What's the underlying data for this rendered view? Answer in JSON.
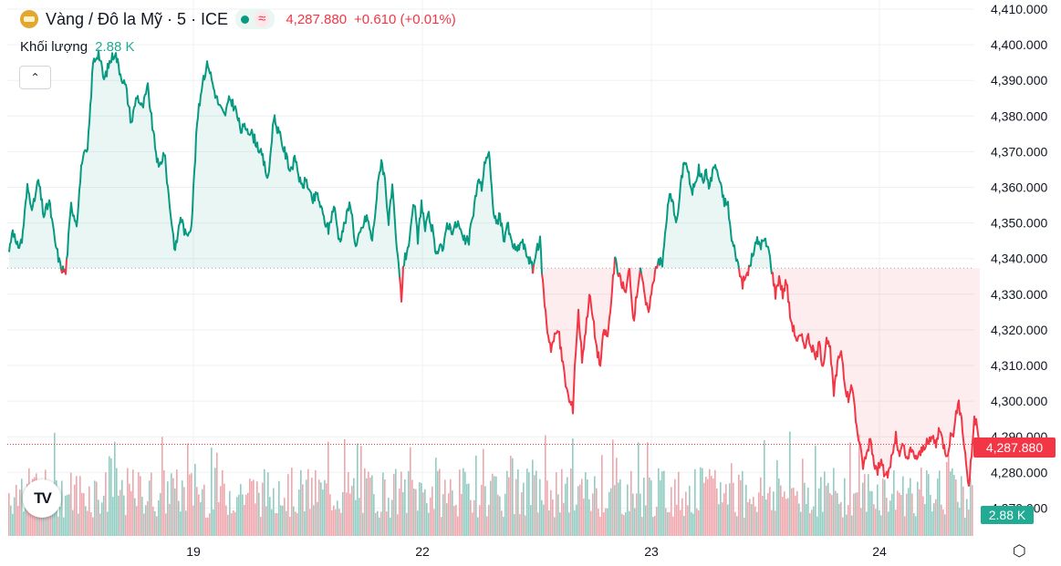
{
  "header": {
    "symbol_icon": "gold-coin-icon",
    "title": "Vàng / Đô la Mỹ · 5 · ICE",
    "status_icon": "market-open-dot-icon",
    "wave_icon": "≈",
    "price": "4,287.880",
    "change": "+0.610 (+0.01%)"
  },
  "volume": {
    "label": "Khối lượng",
    "value": "2.88 K"
  },
  "controls": {
    "collapse_icon": "chevron-up-icon",
    "settings_icon": "gear-icon",
    "logo_text": "TV"
  },
  "colors": {
    "up": "#089981",
    "down": "#f23645",
    "vol_up": "#8fcdc2",
    "vol_down": "#f1a5ac"
  },
  "chart_data": {
    "type": "area",
    "y_axis_ticks": [
      "4,410.000",
      "4,400.000",
      "4,390.000",
      "4,380.000",
      "4,370.000",
      "4,360.000",
      "4,350.000",
      "4,340.000",
      "4,330.000",
      "4,320.000",
      "4,310.000",
      "4,300.000",
      "4,290.000",
      "4,280.000",
      "4,270.000"
    ],
    "ylim": [
      4267,
      4413
    ],
    "x_ticks": [
      "19",
      "22",
      "23",
      "24"
    ],
    "baseline": 4337.3,
    "last_price_label": "4,287.880",
    "last_volume_label": "2.88 K",
    "legend": "none",
    "grid": true,
    "price_anchors": [
      [
        0,
        4342
      ],
      [
        4,
        4349
      ],
      [
        8,
        4343
      ],
      [
        14,
        4345
      ],
      [
        20,
        4360
      ],
      [
        26,
        4354
      ],
      [
        32,
        4362
      ],
      [
        38,
        4352
      ],
      [
        44,
        4356
      ],
      [
        50,
        4345
      ],
      [
        56,
        4338
      ],
      [
        62,
        4336
      ],
      [
        68,
        4355
      ],
      [
        74,
        4350
      ],
      [
        80,
        4368
      ],
      [
        86,
        4370
      ],
      [
        92,
        4395
      ],
      [
        98,
        4398
      ],
      [
        104,
        4390
      ],
      [
        110,
        4395
      ],
      [
        116,
        4398
      ],
      [
        122,
        4392
      ],
      [
        128,
        4388
      ],
      [
        134,
        4378
      ],
      [
        140,
        4386
      ],
      [
        146,
        4382
      ],
      [
        152,
        4388
      ],
      [
        158,
        4375
      ],
      [
        164,
        4365
      ],
      [
        170,
        4370
      ],
      [
        176,
        4355
      ],
      [
        182,
        4342
      ],
      [
        188,
        4352
      ],
      [
        194,
        4346
      ],
      [
        200,
        4350
      ],
      [
        206,
        4378
      ],
      [
        212,
        4390
      ],
      [
        218,
        4395
      ],
      [
        224,
        4388
      ],
      [
        230,
        4383
      ],
      [
        236,
        4380
      ],
      [
        242,
        4385
      ],
      [
        248,
        4382
      ],
      [
        254,
        4376
      ],
      [
        260,
        4377
      ],
      [
        266,
        4375
      ],
      [
        272,
        4372
      ],
      [
        278,
        4368
      ],
      [
        284,
        4362
      ],
      [
        290,
        4380
      ],
      [
        296,
        4375
      ],
      [
        302,
        4370
      ],
      [
        308,
        4365
      ],
      [
        314,
        4368
      ],
      [
        320,
        4360
      ],
      [
        326,
        4362
      ],
      [
        332,
        4356
      ],
      [
        338,
        4358
      ],
      [
        344,
        4352
      ],
      [
        350,
        4348
      ],
      [
        356,
        4355
      ],
      [
        362,
        4345
      ],
      [
        368,
        4350
      ],
      [
        374,
        4356
      ],
      [
        380,
        4343
      ],
      [
        386,
        4348
      ],
      [
        392,
        4352
      ],
      [
        398,
        4345
      ],
      [
        404,
        4360
      ],
      [
        408,
        4368
      ],
      [
        412,
        4362
      ],
      [
        416,
        4350
      ],
      [
        420,
        4360
      ],
      [
        424,
        4345
      ],
      [
        428,
        4335
      ],
      [
        430,
        4328
      ],
      [
        432,
        4338
      ],
      [
        436,
        4342
      ],
      [
        440,
        4347
      ],
      [
        444,
        4356
      ],
      [
        448,
        4345
      ],
      [
        452,
        4356
      ],
      [
        456,
        4348
      ],
      [
        460,
        4352
      ],
      [
        464,
        4348
      ],
      [
        468,
        4340
      ],
      [
        472,
        4345
      ],
      [
        476,
        4342
      ],
      [
        480,
        4350
      ],
      [
        486,
        4348
      ],
      [
        492,
        4350
      ],
      [
        498,
        4345
      ],
      [
        504,
        4345
      ],
      [
        510,
        4355
      ],
      [
        514,
        4362
      ],
      [
        518,
        4360
      ],
      [
        522,
        4368
      ],
      [
        526,
        4370
      ],
      [
        530,
        4355
      ],
      [
        534,
        4350
      ],
      [
        538,
        4352
      ],
      [
        542,
        4345
      ],
      [
        546,
        4350
      ],
      [
        550,
        4345
      ],
      [
        556,
        4342
      ],
      [
        562,
        4345
      ],
      [
        566,
        4342
      ],
      [
        570,
        4340
      ],
      [
        574,
        4337
      ],
      [
        578,
        4342
      ],
      [
        582,
        4345
      ],
      [
        584,
        4337
      ],
      [
        586,
        4330
      ],
      [
        590,
        4320
      ],
      [
        594,
        4315
      ],
      [
        598,
        4318
      ],
      [
        602,
        4320
      ],
      [
        606,
        4312
      ],
      [
        610,
        4305
      ],
      [
        614,
        4300
      ],
      [
        618,
        4298
      ],
      [
        620,
        4310
      ],
      [
        624,
        4325
      ],
      [
        628,
        4312
      ],
      [
        632,
        4320
      ],
      [
        636,
        4330
      ],
      [
        640,
        4323
      ],
      [
        644,
        4315
      ],
      [
        648,
        4310
      ],
      [
        652,
        4320
      ],
      [
        656,
        4318
      ],
      [
        660,
        4328
      ],
      [
        664,
        4340
      ],
      [
        668,
        4335
      ],
      [
        672,
        4333
      ],
      [
        676,
        4330
      ],
      [
        680,
        4338
      ],
      [
        684,
        4322
      ],
      [
        688,
        4330
      ],
      [
        692,
        4338
      ],
      [
        696,
        4330
      ],
      [
        700,
        4325
      ],
      [
        704,
        4330
      ],
      [
        708,
        4337
      ],
      [
        712,
        4340
      ],
      [
        716,
        4338
      ],
      [
        720,
        4350
      ],
      [
        724,
        4358
      ],
      [
        728,
        4355
      ],
      [
        732,
        4350
      ],
      [
        736,
        4360
      ],
      [
        740,
        4368
      ],
      [
        744,
        4365
      ],
      [
        748,
        4358
      ],
      [
        752,
        4362
      ],
      [
        756,
        4365
      ],
      [
        760,
        4362
      ],
      [
        764,
        4364
      ],
      [
        768,
        4360
      ],
      [
        772,
        4366
      ],
      [
        776,
        4365
      ],
      [
        780,
        4360
      ],
      [
        784,
        4356
      ],
      [
        788,
        4355
      ],
      [
        792,
        4345
      ],
      [
        796,
        4342
      ],
      [
        800,
        4337
      ],
      [
        804,
        4333
      ],
      [
        808,
        4335
      ],
      [
        812,
        4338
      ],
      [
        816,
        4342
      ],
      [
        820,
        4345
      ],
      [
        824,
        4344
      ],
      [
        828,
        4345
      ],
      [
        832,
        4343
      ],
      [
        836,
        4337
      ],
      [
        840,
        4330
      ],
      [
        844,
        4335
      ],
      [
        848,
        4330
      ],
      [
        852,
        4334
      ],
      [
        856,
        4324
      ],
      [
        860,
        4320
      ],
      [
        864,
        4317
      ],
      [
        868,
        4318
      ],
      [
        872,
        4316
      ],
      [
        876,
        4318
      ],
      [
        880,
        4315
      ],
      [
        884,
        4312
      ],
      [
        888,
        4316
      ],
      [
        892,
        4310
      ],
      [
        896,
        4318
      ],
      [
        900,
        4314
      ],
      [
        904,
        4302
      ],
      [
        908,
        4310
      ],
      [
        912,
        4315
      ],
      [
        916,
        4305
      ],
      [
        920,
        4300
      ],
      [
        924,
        4305
      ],
      [
        928,
        4295
      ],
      [
        932,
        4288
      ],
      [
        936,
        4282
      ],
      [
        940,
        4285
      ],
      [
        944,
        4290
      ],
      [
        948,
        4283
      ],
      [
        952,
        4280
      ],
      [
        956,
        4285
      ],
      [
        960,
        4278
      ],
      [
        964,
        4280
      ],
      [
        968,
        4285
      ],
      [
        972,
        4290
      ],
      [
        976,
        4284
      ],
      [
        980,
        4288
      ],
      [
        984,
        4283
      ],
      [
        988,
        4286
      ],
      [
        992,
        4285
      ],
      [
        996,
        4284
      ],
      [
        1000,
        4286
      ],
      [
        1004,
        4288
      ],
      [
        1008,
        4288
      ],
      [
        1012,
        4290
      ],
      [
        1016,
        4288
      ],
      [
        1020,
        4292
      ],
      [
        1024,
        4288
      ],
      [
        1028,
        4285
      ],
      [
        1032,
        4290
      ],
      [
        1036,
        4292
      ],
      [
        1040,
        4300
      ],
      [
        1044,
        4295
      ],
      [
        1048,
        4285
      ],
      [
        1052,
        4276
      ],
      [
        1054,
        4282
      ],
      [
        1058,
        4295
      ],
      [
        1062,
        4292
      ],
      [
        1064,
        4288
      ]
    ]
  }
}
